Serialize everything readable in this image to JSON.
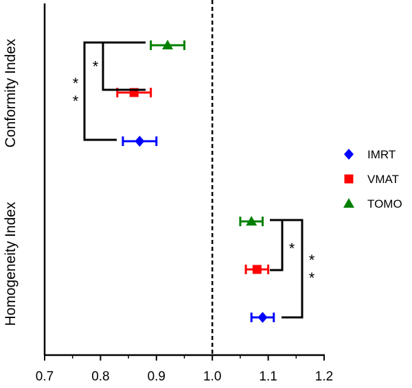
{
  "chart_data": {
    "type": "scatter",
    "orientation": "horizontal",
    "title": "",
    "xlabel": "",
    "ylabel": "",
    "xlim": [
      0.7,
      1.2
    ],
    "xticks": [
      "0.7",
      "0.8",
      "0.9",
      "1.0",
      "1.1",
      "1.2"
    ],
    "reference_line": {
      "x": 1.0,
      "style": "dashed"
    },
    "grid": false,
    "legend_position": "right",
    "groups": [
      "Conformity Index",
      "Homogeneity Index"
    ],
    "series": [
      {
        "name": "IMRT",
        "color": "#0000ff",
        "marker": "diamond",
        "points": [
          {
            "group": "Conformity Index",
            "value": 0.87,
            "err_low": 0.84,
            "err_high": 0.9
          },
          {
            "group": "Homogeneity Index",
            "value": 1.09,
            "err_low": 1.07,
            "err_high": 1.11
          }
        ]
      },
      {
        "name": "VMAT",
        "color": "#ff0000",
        "marker": "square",
        "points": [
          {
            "group": "Conformity Index",
            "value": 0.86,
            "err_low": 0.83,
            "err_high": 0.89
          },
          {
            "group": "Homogeneity Index",
            "value": 1.08,
            "err_low": 1.06,
            "err_high": 1.1
          }
        ]
      },
      {
        "name": "TOMO",
        "color": "#008000",
        "marker": "triangle",
        "points": [
          {
            "group": "Conformity Index",
            "value": 0.92,
            "err_low": 0.89,
            "err_high": 0.95
          },
          {
            "group": "Homogeneity Index",
            "value": 1.07,
            "err_low": 1.05,
            "err_high": 1.09
          }
        ]
      }
    ],
    "significance": [
      {
        "group": "Conformity Index",
        "between": [
          "TOMO",
          "VMAT"
        ],
        "label": "*"
      },
      {
        "group": "Conformity Index",
        "between": [
          "TOMO",
          "IMRT"
        ],
        "label": "* *"
      },
      {
        "group": "Homogeneity Index",
        "between": [
          "TOMO",
          "VMAT"
        ],
        "label": "*"
      },
      {
        "group": "Homogeneity Index",
        "between": [
          "TOMO",
          "IMRT"
        ],
        "label": "* *"
      }
    ]
  }
}
